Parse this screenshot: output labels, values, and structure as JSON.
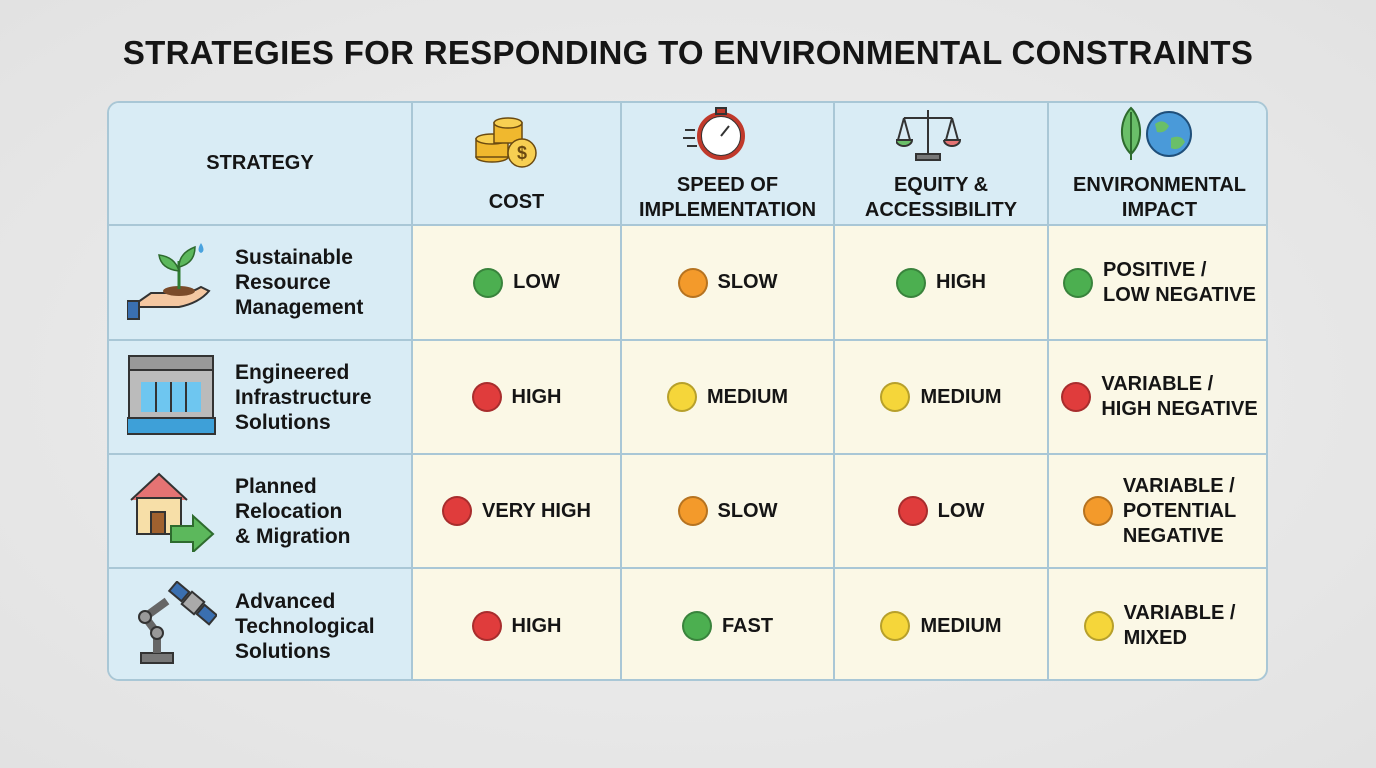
{
  "header": {
    "title": "STRATEGIES FOR RESPONDING TO ENVIRONMENTAL CONSTRAINTS"
  },
  "table": {
    "columns": [
      "STRATEGY",
      "COST",
      "SPEED OF\nIMPLEMENTATION",
      "EQUITY &\nACCESSIBILITY",
      "ENVIRONMENTAL\nIMPACT"
    ],
    "rows": [
      {
        "strategy": "Sustainable\nResource\nManagement",
        "cells": [
          {
            "text": "LOW",
            "color": "#4caf50"
          },
          {
            "text": "SLOW",
            "color": "#f39a2b"
          },
          {
            "text": "HIGH",
            "color": "#4caf50"
          },
          {
            "text": "POSITIVE /\nLOW NEGATIVE",
            "color": "#4caf50"
          }
        ]
      },
      {
        "strategy": "Engineered\nInfrastructure\nSolutions",
        "cells": [
          {
            "text": "HIGH",
            "color": "#e03c3c"
          },
          {
            "text": "MEDIUM",
            "color": "#f5d63a"
          },
          {
            "text": "MEDIUM",
            "color": "#f5d63a"
          },
          {
            "text": "VARIABLE /\nHIGH NEGATIVE",
            "color": "#e03c3c"
          }
        ]
      },
      {
        "strategy": "Planned\nRelocation\n& Migration",
        "cells": [
          {
            "text": "VERY HIGH",
            "color": "#e03c3c"
          },
          {
            "text": "SLOW",
            "color": "#f39a2b"
          },
          {
            "text": "LOW",
            "color": "#e03c3c"
          },
          {
            "text": "VARIABLE /\nPOTENTIAL\nNEGATIVE",
            "color": "#f39a2b"
          }
        ]
      },
      {
        "strategy": "Advanced\nTechnological\nSolutions",
        "cells": [
          {
            "text": "HIGH",
            "color": "#e03c3c"
          },
          {
            "text": "FAST",
            "color": "#4caf50"
          },
          {
            "text": "MEDIUM",
            "color": "#f5d63a"
          },
          {
            "text": "VARIABLE /\nMIXED",
            "color": "#f5d63a"
          }
        ]
      }
    ]
  }
}
